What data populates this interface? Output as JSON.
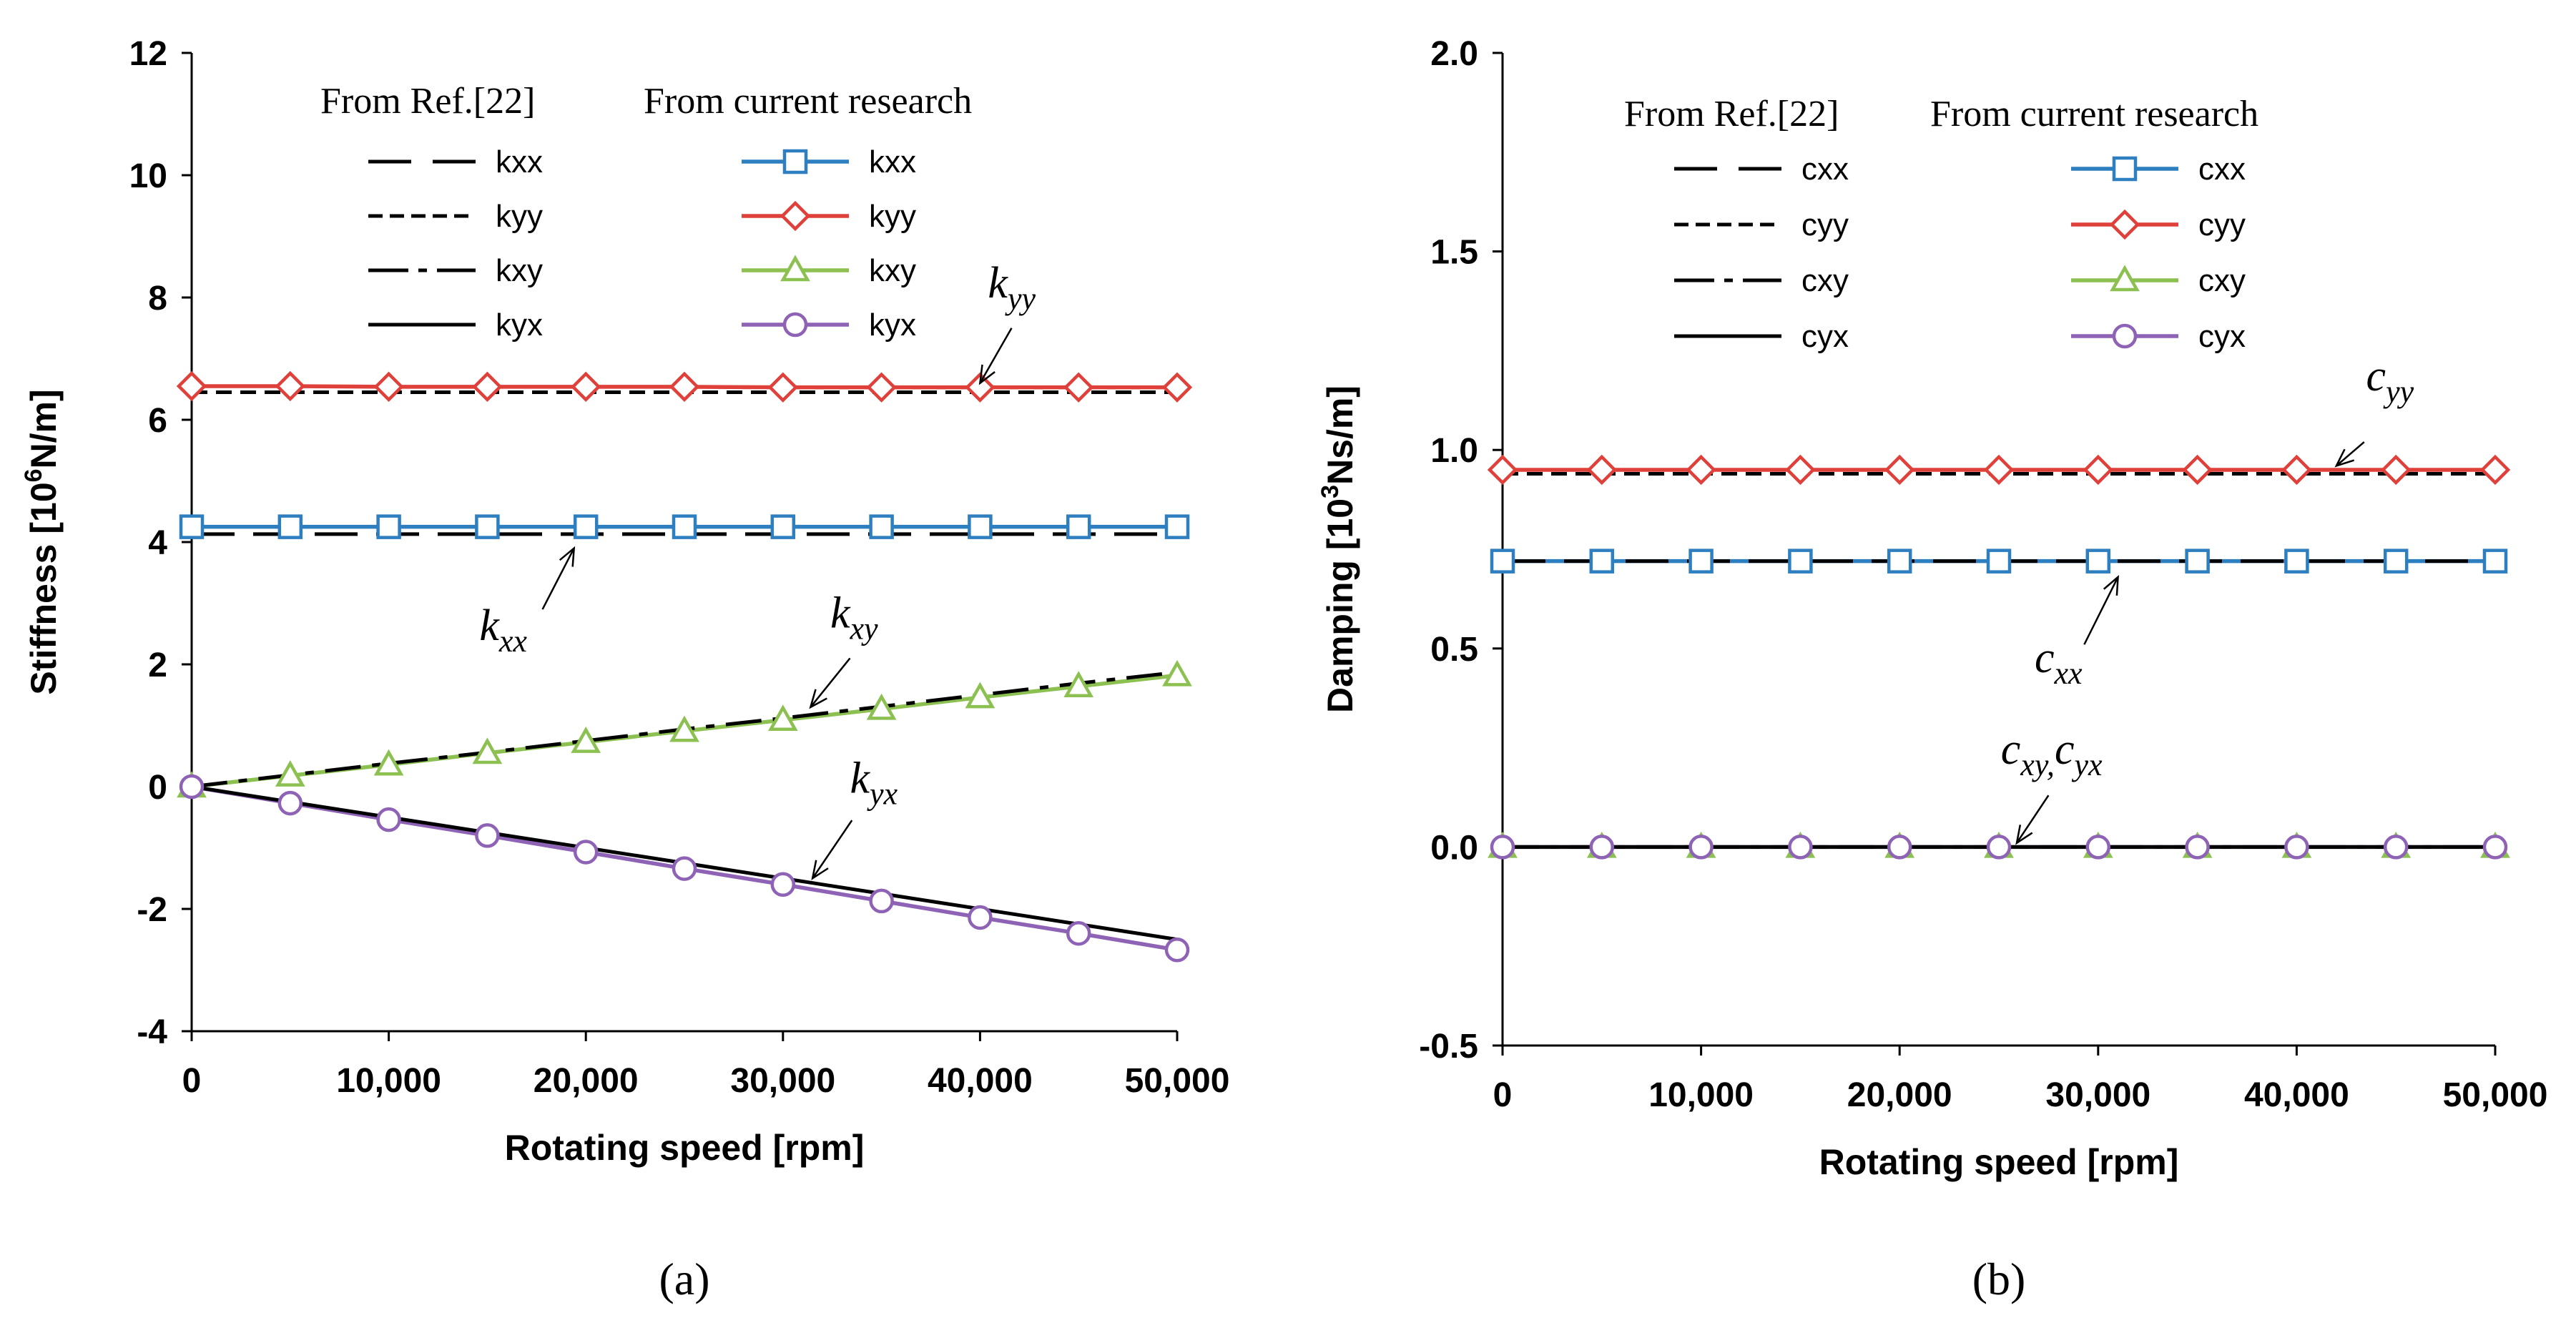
{
  "chart_data": [
    {
      "type": "line",
      "panel_label": "(a)",
      "xlabel": "Rotating speed [rpm]",
      "ylabel": "Stiffness [10⁶N/m]",
      "ylabel_parts": {
        "pre": "Stiffness [10",
        "sup": "6",
        "post": "N/m]"
      },
      "xlim": [
        0,
        50000
      ],
      "ylim": [
        -4,
        12
      ],
      "x_ticks": [
        0,
        10000,
        20000,
        30000,
        40000,
        50000
      ],
      "x_tick_labels": [
        "0",
        "10,000",
        "20,000",
        "30,000",
        "40,000",
        "50,000"
      ],
      "y_ticks": [
        -4,
        -2,
        0,
        2,
        4,
        6,
        8,
        10,
        12
      ],
      "y_tick_labels": [
        "-4",
        "-2",
        "0",
        "2",
        "4",
        "6",
        "8",
        "10",
        "12"
      ],
      "grid": false,
      "legend_headers": [
        "From Ref.[22]",
        "From current research"
      ],
      "x": [
        0,
        5000,
        10000,
        15000,
        20000,
        25000,
        30000,
        35000,
        40000,
        45000,
        50000
      ],
      "series": [
        {
          "name": "kxx",
          "group": "ref",
          "color": "#000000",
          "dash": "long-dash",
          "values": [
            4.13,
            4.13,
            4.13,
            4.13,
            4.13,
            4.13,
            4.13,
            4.13,
            4.13,
            4.13,
            4.13
          ]
        },
        {
          "name": "kyy",
          "group": "ref",
          "color": "#000000",
          "dash": "short-dash",
          "values": [
            6.45,
            6.45,
            6.45,
            6.45,
            6.45,
            6.45,
            6.45,
            6.45,
            6.45,
            6.45,
            6.45
          ]
        },
        {
          "name": "kxy",
          "group": "ref",
          "color": "#000000",
          "dash": "dash-dot",
          "values": [
            0,
            0.19,
            0.38,
            0.56,
            0.75,
            0.94,
            1.12,
            1.31,
            1.5,
            1.69,
            1.87
          ]
        },
        {
          "name": "kyx",
          "group": "ref",
          "color": "#000000",
          "dash": "solid",
          "values": [
            0,
            -0.25,
            -0.5,
            -0.75,
            -1.0,
            -1.25,
            -1.5,
            -1.75,
            -2.0,
            -2.25,
            -2.5
          ]
        },
        {
          "name": "kxx",
          "group": "current",
          "color": "#2e7fc0",
          "marker": "square",
          "values": [
            4.25,
            4.25,
            4.25,
            4.25,
            4.25,
            4.25,
            4.25,
            4.25,
            4.25,
            4.25,
            4.25
          ]
        },
        {
          "name": "kyy",
          "group": "current",
          "color": "#e0403a",
          "marker": "diamond",
          "values": [
            6.55,
            6.55,
            6.54,
            6.54,
            6.54,
            6.54,
            6.53,
            6.53,
            6.53,
            6.53,
            6.53
          ]
        },
        {
          "name": "kxy",
          "group": "current",
          "color": "#8cc152",
          "marker": "triangle",
          "values": [
            0,
            0.18,
            0.36,
            0.55,
            0.73,
            0.91,
            1.09,
            1.27,
            1.46,
            1.64,
            1.82
          ]
        },
        {
          "name": "kyx",
          "group": "current",
          "color": "#8e63b6",
          "marker": "circle",
          "values": [
            0,
            -0.27,
            -0.54,
            -0.8,
            -1.07,
            -1.34,
            -1.6,
            -1.87,
            -2.14,
            -2.4,
            -2.67
          ]
        }
      ],
      "annotations": [
        {
          "base": "k",
          "sub": "yy",
          "text_x": 40400,
          "text_y": 8.0,
          "arrow_from": [
            41600,
            7.5
          ],
          "arrow_to": [
            40000,
            6.6
          ]
        },
        {
          "base": "k",
          "sub": "xx",
          "text_x": 14600,
          "text_y": 2.4,
          "arrow_from": [
            17800,
            2.9
          ],
          "arrow_to": [
            19400,
            3.9
          ]
        },
        {
          "base": "k",
          "sub": "xy",
          "text_x": 32400,
          "text_y": 2.6,
          "arrow_from": [
            33400,
            2.1
          ],
          "arrow_to": [
            31400,
            1.3
          ]
        },
        {
          "base": "k",
          "sub": "yx",
          "text_x": 33400,
          "text_y": -0.1,
          "arrow_from": [
            33500,
            -0.55
          ],
          "arrow_to": [
            31500,
            -1.5
          ]
        }
      ]
    },
    {
      "type": "line",
      "panel_label": "(b)",
      "xlabel": "Rotating speed [rpm]",
      "ylabel": "Damping [10³Ns/m]",
      "ylabel_parts": {
        "pre": "Damping [10",
        "sup": "3",
        "post": "Ns/m]"
      },
      "xlim": [
        0,
        50000
      ],
      "ylim": [
        -0.5,
        2.0
      ],
      "x_ticks": [
        0,
        10000,
        20000,
        30000,
        40000,
        50000
      ],
      "x_tick_labels": [
        "0",
        "10,000",
        "20,000",
        "30,000",
        "40,000",
        "50,000"
      ],
      "y_ticks": [
        -0.5,
        0.0,
        0.5,
        1.0,
        1.5,
        2.0
      ],
      "y_tick_labels": [
        "-0.5",
        "0.0",
        "0.5",
        "1.0",
        "1.5",
        "2.0"
      ],
      "grid": false,
      "legend_headers": [
        "From Ref.[22]",
        "From current research"
      ],
      "x": [
        0,
        5000,
        10000,
        15000,
        20000,
        25000,
        30000,
        35000,
        40000,
        45000,
        50000
      ],
      "series": [
        {
          "name": "cxx",
          "group": "ref",
          "color": "#000000",
          "dash": "long-dash",
          "values": [
            0.72,
            0.72,
            0.72,
            0.72,
            0.72,
            0.72,
            0.72,
            0.72,
            0.72,
            0.72,
            0.72
          ]
        },
        {
          "name": "cyy",
          "group": "ref",
          "color": "#000000",
          "dash": "short-dash",
          "values": [
            0.94,
            0.94,
            0.94,
            0.94,
            0.94,
            0.94,
            0.94,
            0.94,
            0.94,
            0.94,
            0.94
          ]
        },
        {
          "name": "cxy",
          "group": "ref",
          "color": "#000000",
          "dash": "dash-dot",
          "values": [
            0,
            0,
            0,
            0,
            0,
            0,
            0,
            0,
            0,
            0,
            0
          ]
        },
        {
          "name": "cyx",
          "group": "ref",
          "color": "#000000",
          "dash": "solid",
          "values": [
            0,
            0,
            0,
            0,
            0,
            0,
            0,
            0,
            0,
            0,
            0
          ]
        },
        {
          "name": "cxx",
          "group": "current",
          "color": "#2e7fc0",
          "marker": "square",
          "values": [
            0.72,
            0.72,
            0.72,
            0.72,
            0.72,
            0.72,
            0.72,
            0.72,
            0.72,
            0.72,
            0.72
          ]
        },
        {
          "name": "cyy",
          "group": "current",
          "color": "#e0403a",
          "marker": "diamond",
          "values": [
            0.95,
            0.95,
            0.95,
            0.95,
            0.95,
            0.95,
            0.95,
            0.95,
            0.95,
            0.95,
            0.95
          ]
        },
        {
          "name": "cxy",
          "group": "current",
          "color": "#8cc152",
          "marker": "triangle",
          "values": [
            0,
            0,
            0,
            0,
            0,
            0,
            0,
            0,
            0,
            0,
            0
          ]
        },
        {
          "name": "cyx",
          "group": "current",
          "color": "#8e63b6",
          "marker": "circle",
          "values": [
            0,
            0,
            0,
            0,
            0,
            0,
            0,
            0,
            0,
            0,
            0
          ]
        }
      ],
      "annotations": [
        {
          "base": "c",
          "sub": "yy",
          "text_x": 43500,
          "text_y": 1.15,
          "arrow_from": [
            43400,
            1.02
          ],
          "arrow_to": [
            42000,
            0.96
          ]
        },
        {
          "base": "c",
          "sub": "xx",
          "text_x": 26800,
          "text_y": 0.44,
          "arrow_from": [
            29300,
            0.51
          ],
          "arrow_to": [
            31000,
            0.68
          ]
        },
        {
          "base": "c",
          "sub": "xy,",
          "base2": "c",
          "sub2": "yx",
          "text_x": 25100,
          "text_y": 0.21,
          "arrow_from": [
            27500,
            0.13
          ],
          "arrow_to": [
            25900,
            0.01
          ]
        }
      ]
    }
  ]
}
